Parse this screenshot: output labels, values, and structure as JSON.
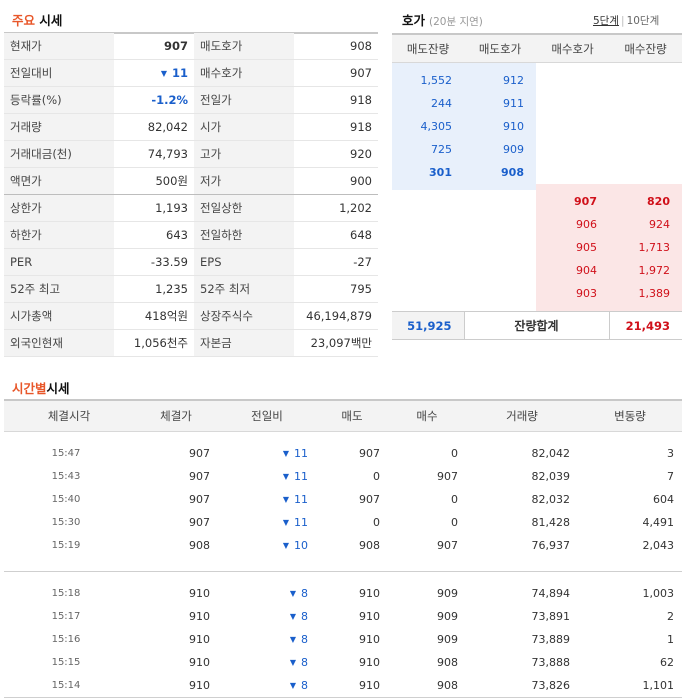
{
  "quote_section": {
    "title_hl": "주요",
    "title_rest": "시세",
    "rows": [
      {
        "l1": "현재가",
        "v1": "907",
        "l2": "매도호가",
        "v2": "908"
      },
      {
        "l1": "전일대비",
        "v1": "11",
        "l2": "매수호가",
        "v2": "907"
      },
      {
        "l1": "등락률(%)",
        "v1": "-1.2%",
        "l2": "전일가",
        "v2": "918"
      },
      {
        "l1": "거래량",
        "v1": "82,042",
        "l2": "시가",
        "v2": "918"
      },
      {
        "l1": "거래대금(천)",
        "v1": "74,793",
        "l2": "고가",
        "v2": "920"
      },
      {
        "l1": "액면가",
        "v1": "500원",
        "l2": "저가",
        "v2": "900"
      },
      {
        "l1": "상한가",
        "v1": "1,193",
        "l2": "전일상한",
        "v2": "1,202"
      },
      {
        "l1": "하한가",
        "v1": "643",
        "l2": "전일하한",
        "v2": "648"
      },
      {
        "l1": "PER",
        "v1": "-33.59",
        "l2": "EPS",
        "v2": "-27"
      },
      {
        "l1": "52주 최고",
        "v1": "1,235",
        "l2": "52주 최저",
        "v2": "795"
      },
      {
        "l1": "시가총액",
        "v1": "418억원",
        "l2": "상장주식수",
        "v2": "46,194,879"
      },
      {
        "l1": "외국인현재",
        "v1": "1,056천주",
        "l2": "자본금",
        "v2": "23,097백만"
      }
    ]
  },
  "orderbook": {
    "title": "호가",
    "note": "(20분 지연)",
    "tab_5": "5단계",
    "tab_10": "10단계",
    "headers": [
      "매도잔량",
      "매도호가",
      "매수호가",
      "매수잔량"
    ],
    "asks": [
      {
        "qty": "1,552",
        "price": "912"
      },
      {
        "qty": "244",
        "price": "911"
      },
      {
        "qty": "4,305",
        "price": "910"
      },
      {
        "qty": "725",
        "price": "909"
      },
      {
        "qty": "301",
        "price": "908"
      }
    ],
    "bids": [
      {
        "price": "907",
        "qty": "820"
      },
      {
        "price": "906",
        "qty": "924"
      },
      {
        "price": "905",
        "qty": "1,713"
      },
      {
        "price": "904",
        "qty": "1,972"
      },
      {
        "price": "903",
        "qty": "1,389"
      }
    ],
    "total_ask": "51,925",
    "total_label": "잔량합계",
    "total_bid": "21,493"
  },
  "time_section": {
    "title_hl": "시간별",
    "title_rest": "시세",
    "headers": [
      "체결시각",
      "체결가",
      "전일비",
      "매도",
      "매수",
      "거래량",
      "변동량"
    ],
    "rows": [
      {
        "time": "15:47",
        "price": "907",
        "chg": "11",
        "sell": "907",
        "buy": "0",
        "vol": "82,042",
        "delta": "3"
      },
      {
        "time": "15:43",
        "price": "907",
        "chg": "11",
        "sell": "0",
        "buy": "907",
        "vol": "82,039",
        "delta": "7"
      },
      {
        "time": "15:40",
        "price": "907",
        "chg": "11",
        "sell": "907",
        "buy": "0",
        "vol": "82,032",
        "delta": "604"
      },
      {
        "time": "15:30",
        "price": "907",
        "chg": "11",
        "sell": "0",
        "buy": "0",
        "vol": "81,428",
        "delta": "4,491"
      },
      {
        "time": "15:19",
        "price": "908",
        "chg": "10",
        "sell": "908",
        "buy": "907",
        "vol": "76,937",
        "delta": "2,043"
      },
      {
        "time": "15:18",
        "price": "910",
        "chg": "8",
        "sell": "910",
        "buy": "909",
        "vol": "74,894",
        "delta": "1,003"
      },
      {
        "time": "15:17",
        "price": "910",
        "chg": "8",
        "sell": "910",
        "buy": "909",
        "vol": "73,891",
        "delta": "2"
      },
      {
        "time": "15:16",
        "price": "910",
        "chg": "8",
        "sell": "910",
        "buy": "909",
        "vol": "73,889",
        "delta": "1"
      },
      {
        "time": "15:15",
        "price": "910",
        "chg": "8",
        "sell": "910",
        "buy": "908",
        "vol": "73,888",
        "delta": "62"
      },
      {
        "time": "15:14",
        "price": "910",
        "chg": "8",
        "sell": "910",
        "buy": "908",
        "vol": "73,826",
        "delta": "1,101"
      }
    ]
  },
  "colors": {
    "accent": "#e8572a",
    "down": "#1a5fcb",
    "up": "#d0101a"
  },
  "icons": {
    "down_arrow": "down-triangle-icon"
  }
}
